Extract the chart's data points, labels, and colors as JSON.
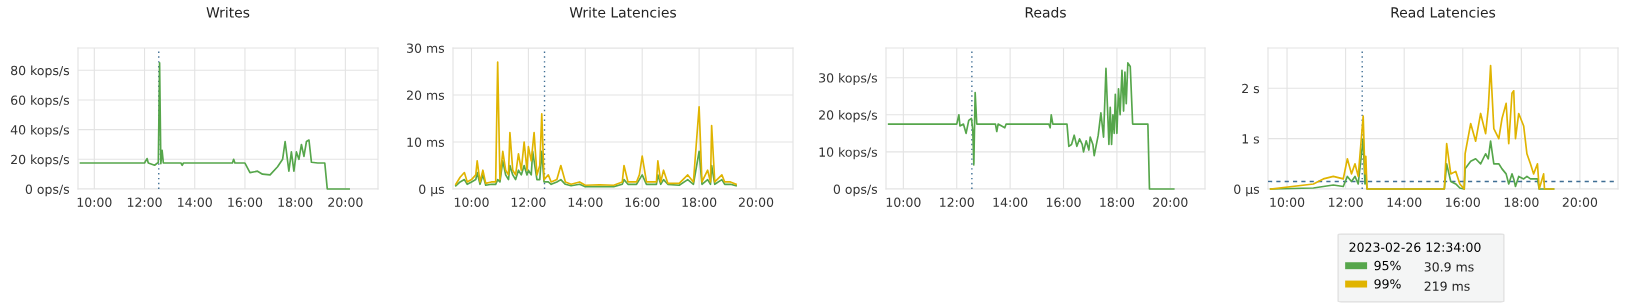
{
  "chart_data": [
    {
      "type": "line",
      "title": "Writes",
      "xlim": [
        9.35,
        21.3
      ],
      "ylim": [
        0,
        95
      ],
      "grid": true,
      "xticks": [
        {
          "value": 10,
          "label": "10:00"
        },
        {
          "value": 12,
          "label": "12:00"
        },
        {
          "value": 14,
          "label": "14:00"
        },
        {
          "value": 16,
          "label": "16:00"
        },
        {
          "value": 18,
          "label": "18:00"
        },
        {
          "value": 20,
          "label": "20:00"
        }
      ],
      "yticks": [
        {
          "value": 0,
          "label": "0 ops/s"
        },
        {
          "value": 20,
          "label": "20 kops/s"
        },
        {
          "value": 40,
          "label": "40 kops/s"
        },
        {
          "value": 60,
          "label": "60 kops/s"
        },
        {
          "value": 80,
          "label": "80 kops/s"
        }
      ],
      "ref_lines": [
        {
          "axis": "x",
          "value": 12.5667,
          "color": "#3f6e94",
          "line_style": "dotted"
        }
      ],
      "x": [
        9.45,
        10.5,
        12.0,
        12.1,
        12.15,
        12.4,
        12.55,
        12.6,
        12.65,
        12.7,
        12.75,
        13.45,
        13.5,
        13.55,
        15.5,
        15.55,
        15.6,
        16.0,
        16.2,
        16.5,
        16.7,
        17.0,
        17.3,
        17.5,
        17.6,
        17.75,
        17.85,
        17.95,
        18.05,
        18.15,
        18.25,
        18.35,
        18.45,
        18.55,
        18.65,
        18.9,
        19.18,
        19.28,
        20.15
      ],
      "series": [
        {
          "color": "#56a64b",
          "values": [
            17.5,
            17.5,
            17.5,
            20.5,
            17.5,
            16,
            18,
            85,
            17,
            26,
            17.5,
            17.5,
            16,
            17.5,
            17.5,
            20,
            17.5,
            17.5,
            11,
            12,
            10,
            9.5,
            15,
            20,
            32,
            12,
            25,
            12,
            25,
            20,
            30,
            22,
            32,
            33,
            18,
            17.5,
            17.5,
            0,
            0
          ]
        }
      ]
    },
    {
      "type": "line",
      "title": "Write Latencies",
      "xlim": [
        9.35,
        21.3
      ],
      "ylim": [
        0,
        30
      ],
      "grid": true,
      "xticks": [
        {
          "value": 10,
          "label": "10:00"
        },
        {
          "value": 12,
          "label": "12:00"
        },
        {
          "value": 14,
          "label": "14:00"
        },
        {
          "value": 16,
          "label": "16:00"
        },
        {
          "value": 18,
          "label": "18:00"
        },
        {
          "value": 20,
          "label": "20:00"
        }
      ],
      "yticks": [
        {
          "value": 0,
          "label": "0 µs"
        },
        {
          "value": 10,
          "label": "10 ms"
        },
        {
          "value": 20,
          "label": "20 ms"
        },
        {
          "value": 30,
          "label": "30 ms"
        }
      ],
      "ref_lines": [
        {
          "axis": "x",
          "value": 12.5667,
          "color": "#3f6e94",
          "line_style": "dotted"
        }
      ],
      "x": [
        9.45,
        9.6,
        9.75,
        9.85,
        10.0,
        10.15,
        10.2,
        10.3,
        10.4,
        10.5,
        10.7,
        10.85,
        10.92,
        11.0,
        11.1,
        11.2,
        11.3,
        11.35,
        11.45,
        11.55,
        11.65,
        11.75,
        11.85,
        11.95,
        12.0,
        12.1,
        12.15,
        12.2,
        12.3,
        12.4,
        12.47,
        12.55,
        12.7,
        12.8,
        13.0,
        13.14,
        13.3,
        13.5,
        13.8,
        14.0,
        14.5,
        15.0,
        15.3,
        15.36,
        15.5,
        15.8,
        15.9,
        16.0,
        16.15,
        16.5,
        16.55,
        16.65,
        16.75,
        16.9,
        17.3,
        17.6,
        17.8,
        18.0,
        18.1,
        18.3,
        18.4,
        18.44,
        18.55,
        18.8,
        18.9,
        19.1,
        19.3
      ],
      "series": [
        {
          "color": "#56a64b",
          "values": [
            0.7,
            1.5,
            2,
            1,
            1.5,
            2,
            3.5,
            1,
            3,
            0.8,
            1,
            1,
            2,
            1.5,
            6,
            3,
            2,
            5,
            3,
            2,
            4,
            3,
            5,
            3,
            4,
            3,
            8,
            6,
            2,
            2,
            8,
            1.5,
            1.5,
            1,
            1.5,
            2,
            1,
            0.7,
            1,
            0.5,
            0.5,
            0.5,
            1,
            2,
            1,
            1,
            2,
            3,
            1,
            1,
            3,
            1,
            2,
            1,
            0.8,
            2,
            1,
            8,
            1,
            2,
            1,
            5,
            1,
            2,
            1,
            1,
            0.7
          ]
        },
        {
          "color": "#e0b400",
          "values": [
            1,
            2.5,
            3.5,
            1.5,
            2,
            3,
            6,
            1.5,
            4,
            1.2,
            1.5,
            1.5,
            27,
            2,
            8,
            4,
            3,
            12,
            4,
            3,
            7.5,
            4,
            10,
            4,
            9,
            6,
            9,
            12,
            3,
            5,
            16,
            2,
            3,
            1.5,
            2,
            5,
            1.5,
            1,
            1.5,
            0.8,
            0.9,
            0.8,
            1.5,
            5,
            1.5,
            1.5,
            3,
            7,
            1.5,
            1.5,
            6,
            1.5,
            4,
            1.2,
            1.2,
            3,
            1.5,
            17.5,
            1.5,
            4,
            1.5,
            13.5,
            1.5,
            3,
            1.5,
            1.5,
            1
          ]
        }
      ]
    },
    {
      "type": "line",
      "title": "Reads",
      "xlim": [
        9.35,
        21.3
      ],
      "ylim": [
        0,
        38
      ],
      "grid": true,
      "xticks": [
        {
          "value": 10,
          "label": "10:00"
        },
        {
          "value": 12,
          "label": "12:00"
        },
        {
          "value": 14,
          "label": "14:00"
        },
        {
          "value": 16,
          "label": "16:00"
        },
        {
          "value": 18,
          "label": "18:00"
        },
        {
          "value": 20,
          "label": "20:00"
        }
      ],
      "yticks": [
        {
          "value": 0,
          "label": "0 ops/s"
        },
        {
          "value": 10,
          "label": "10 kops/s"
        },
        {
          "value": 20,
          "label": "20 kops/s"
        },
        {
          "value": 30,
          "label": "30 kops/s"
        }
      ],
      "ref_lines": [
        {
          "axis": "x",
          "value": 12.5667,
          "color": "#3f6e94",
          "line_style": "dotted"
        }
      ],
      "x": [
        9.45,
        12.0,
        12.08,
        12.12,
        12.25,
        12.35,
        12.45,
        12.55,
        12.6,
        12.64,
        12.69,
        12.75,
        13.45,
        13.5,
        13.55,
        13.8,
        13.85,
        15.45,
        15.5,
        15.54,
        15.6,
        16.13,
        16.2,
        16.3,
        16.4,
        16.5,
        16.6,
        16.7,
        16.75,
        16.85,
        16.95,
        17.0,
        17.1,
        17.15,
        17.3,
        17.4,
        17.5,
        17.59,
        17.7,
        17.75,
        17.8,
        17.85,
        17.9,
        17.94,
        18.0,
        18.06,
        18.12,
        18.19,
        18.25,
        18.3,
        18.35,
        18.41,
        18.5,
        18.59,
        19.16,
        19.22,
        20.13
      ],
      "series": [
        {
          "color": "#56a64b",
          "values": [
            17.5,
            17.5,
            20,
            17,
            17.5,
            15,
            18.5,
            19,
            16,
            6.5,
            26,
            17.5,
            17.5,
            15.5,
            17.5,
            16.5,
            17.5,
            17.5,
            16.5,
            20,
            17.5,
            17.5,
            11.5,
            12,
            14.5,
            11.5,
            13.5,
            12,
            10,
            13,
            10.5,
            14,
            12,
            9,
            14.5,
            20.5,
            14,
            32.5,
            12,
            22,
            12,
            20,
            15,
            25.5,
            15,
            27,
            20,
            32,
            21,
            31.5,
            23,
            34,
            33,
            17.5,
            17.5,
            0,
            0
          ]
        }
      ]
    },
    {
      "type": "line",
      "title": "Read Latencies",
      "xlim": [
        9.35,
        21.3
      ],
      "ylim": [
        0,
        2.8
      ],
      "grid": true,
      "legend": "bottom",
      "legend_title": "2023-02-26 12:34:00",
      "annotations": [
        "30.9 ms",
        "219 ms"
      ],
      "xticks": [
        {
          "value": 10,
          "label": "10:00"
        },
        {
          "value": 12,
          "label": "12:00"
        },
        {
          "value": 14,
          "label": "14:00"
        },
        {
          "value": 16,
          "label": "16:00"
        },
        {
          "value": 18,
          "label": "18:00"
        },
        {
          "value": 20,
          "label": "20:00"
        }
      ],
      "yticks": [
        {
          "value": 0,
          "label": "0 µs"
        },
        {
          "value": 1,
          "label": "1 s"
        },
        {
          "value": 2,
          "label": "2 s"
        }
      ],
      "ref_lines": [
        {
          "axis": "x",
          "value": 12.5667,
          "color": "#3f6e94",
          "line_style": "dotted"
        },
        {
          "axis": "y",
          "value": 0.15,
          "color": "#3f6e94",
          "line_style": "dashed"
        }
      ],
      "x": [
        9.44,
        10.9,
        11.24,
        11.58,
        11.92,
        12.06,
        12.2,
        12.32,
        12.43,
        12.6,
        12.66,
        12.69,
        12.73,
        14.63,
        15.37,
        15.45,
        15.59,
        15.76,
        15.9,
        16.05,
        16.08,
        16.27,
        16.44,
        16.61,
        16.78,
        16.87,
        16.95,
        17.06,
        17.23,
        17.34,
        17.48,
        17.57,
        17.68,
        17.74,
        17.8,
        17.91,
        18.08,
        18.19,
        18.31,
        18.42,
        18.55,
        18.61,
        18.76,
        18.79,
        19.1
      ],
      "series": [
        {
          "name": "95%",
          "color": "#56a64b",
          "values": [
            0,
            0.02,
            0.05,
            0.08,
            0.05,
            0.25,
            0.15,
            0.25,
            0.1,
            1.0,
            0.1,
            0.3,
            0,
            0,
            0,
            0.5,
            0.15,
            0.1,
            0.02,
            0,
            0.4,
            0.55,
            0.6,
            0.5,
            0.7,
            0.6,
            0.95,
            0.5,
            0.5,
            0.4,
            0.3,
            0.1,
            0.3,
            0.2,
            0.05,
            0.25,
            0.2,
            0.25,
            0.2,
            0.2,
            0.2,
            0,
            0,
            0,
            0
          ]
        },
        {
          "name": "99%",
          "color": "#e0b400",
          "values": [
            0,
            0.1,
            0.2,
            0.25,
            0.2,
            0.6,
            0.3,
            0.5,
            0.25,
            1.45,
            0.3,
            0.65,
            0,
            0,
            0,
            0.9,
            0.3,
            0.35,
            0.1,
            0,
            0.7,
            1.3,
            0.95,
            1.5,
            1.1,
            1.6,
            2.45,
            1.2,
            1.0,
            1.4,
            1.7,
            0.9,
            1.9,
            1.95,
            1.0,
            1.5,
            1.25,
            0.7,
            0.5,
            0.3,
            0.5,
            0,
            0.3,
            0,
            0
          ]
        }
      ]
    }
  ]
}
